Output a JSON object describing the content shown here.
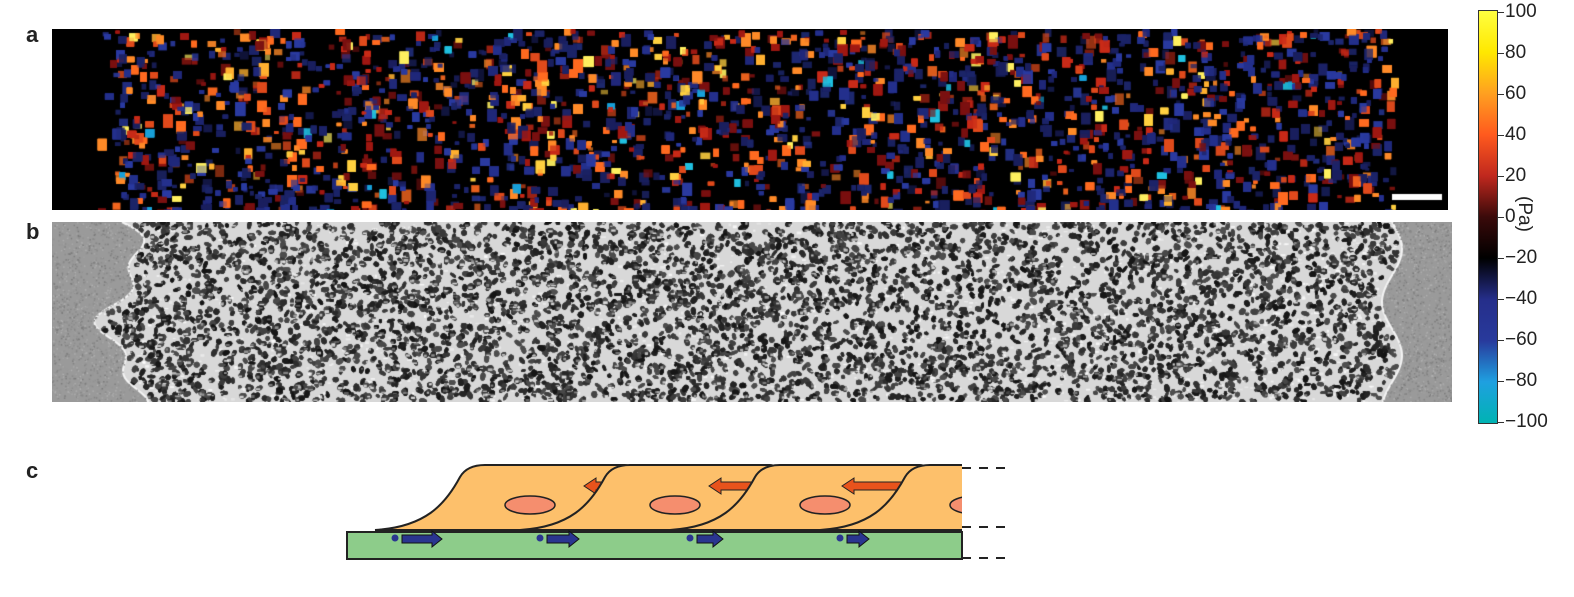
{
  "panels": {
    "a": "a",
    "b": "b",
    "c": "c"
  },
  "colorbar": {
    "ticks": [
      "100",
      "80",
      "60",
      "40",
      "20",
      "0",
      "−20",
      "−40",
      "−60",
      "−80",
      "−100"
    ],
    "unit": "(Pa)",
    "colormap": [
      "#00b3b3",
      "#1fa0e0",
      "#283a9c",
      "#252e8a",
      "#000000",
      "#3a0a0a",
      "#c0281e",
      "#ff5a1e",
      "#ffa020",
      "#ffe800",
      "#ffff40"
    ]
  },
  "colors": {
    "cell_body": "#fdc06b",
    "nucleus": "#f58e6e",
    "substrate": "#8dcc8a",
    "cell_arrow": "#e8531c",
    "substrate_arrow": "#2a3590",
    "heatmap_bg": "#000000",
    "scale_bar": "#ffffff"
  }
}
